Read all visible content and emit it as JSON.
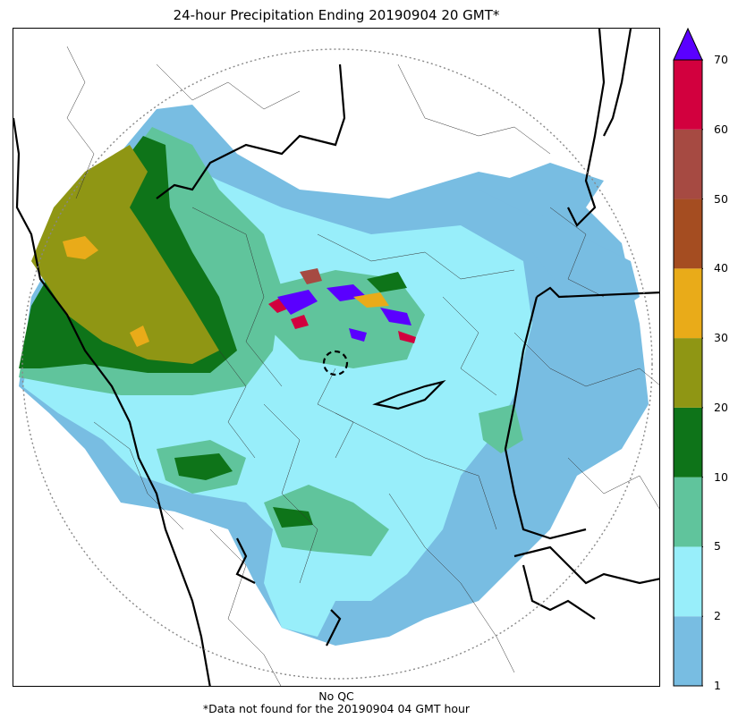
{
  "title": "24-hour Precipitation Ending 20190904 20 GMT*",
  "footer": {
    "line1": "No QC",
    "line2": "*Data not found for the 20190904 04 GMT hour"
  },
  "colorbar": {
    "ticks": [
      "1",
      "2",
      "5",
      "10",
      "20",
      "30",
      "40",
      "50",
      "60",
      "70"
    ],
    "colors": [
      "#78bde2",
      "#98eefa",
      "#60c49c",
      "#0e7419",
      "#8f9614",
      "#e9ab19",
      "#a54d21",
      "#a64a42",
      "#d2003e"
    ],
    "extend_color": "#5a00ff"
  },
  "map": {
    "range_ring_color": "#888888",
    "border_color": "#000000",
    "radar_marker": "radar-site"
  }
}
